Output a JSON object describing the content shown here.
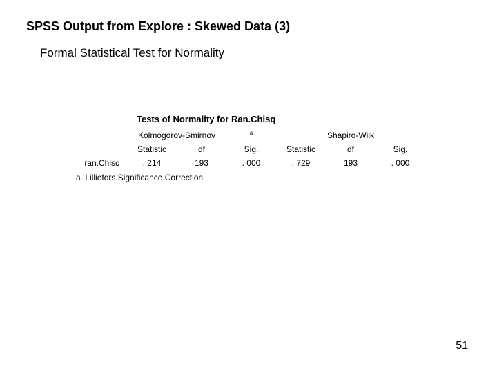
{
  "title": "SPSS Output from Explore : Skewed Data (3)",
  "subtitle": "Formal Statistical Test for Normality",
  "table": {
    "caption": "Tests of Normality for Ran.Chisq",
    "group1": "Kolmogorov-Smirnov",
    "group1_sup": "a",
    "group2": "Shapiro-Wilk",
    "h_stat": "Statistic",
    "h_df": "df",
    "h_sig": "Sig.",
    "row_label": "ran.Chisq",
    "ks_stat": ". 214",
    "ks_df": "193",
    "ks_sig": ". 000",
    "sw_stat": ". 729",
    "sw_df": "193",
    "sw_sig": ". 000",
    "footnote_marker": "a.",
    "footnote_text": "Lilliefors Significance Correction"
  },
  "page_number": "51"
}
